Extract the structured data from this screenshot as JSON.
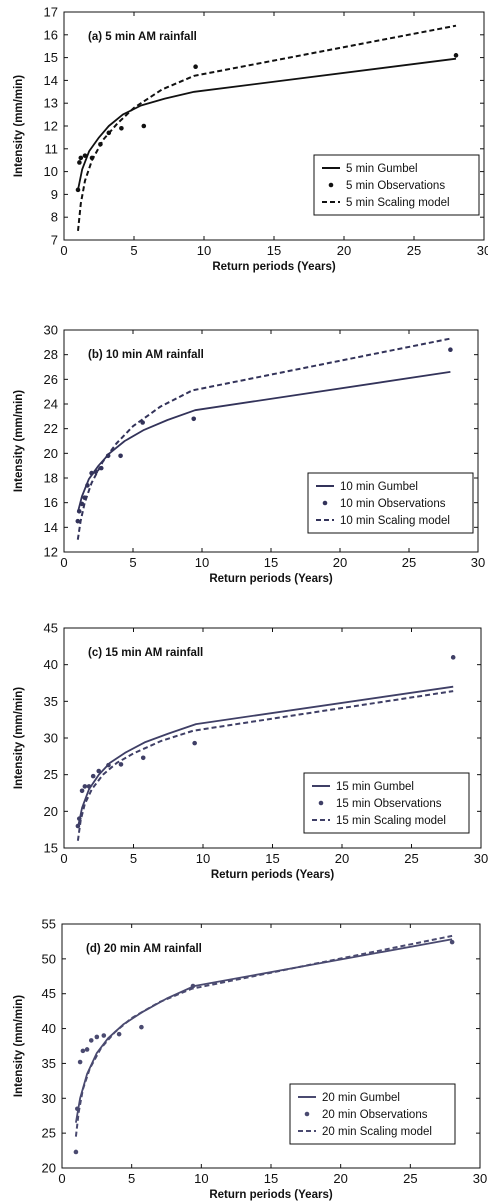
{
  "chart_data": [
    {
      "type": "line",
      "title": "(a) 5 min AM rainfall",
      "xlabel": "Return periods (Years)",
      "ylabel": "Intensity (mm/min)",
      "xlim": [
        0,
        30
      ],
      "ylim": [
        7,
        17
      ],
      "xticks": [
        0,
        5,
        10,
        15,
        20,
        25,
        30
      ],
      "yticks": [
        7,
        8,
        9,
        10,
        11,
        12,
        13,
        14,
        15,
        16,
        17
      ],
      "legend_position": "lower-right",
      "line_color": "#111111",
      "series": [
        {
          "name": "5 min Gumbel",
          "style": "solid",
          "x": [
            1.0,
            1.3,
            1.8,
            2.5,
            3.2,
            4.2,
            5.5,
            7.2,
            9.3,
            28
          ],
          "y": [
            9.2,
            10.1,
            10.9,
            11.5,
            12.0,
            12.5,
            12.9,
            13.2,
            13.5,
            14.95
          ]
        },
        {
          "name": "5 min Observations",
          "style": "points",
          "x": [
            1.0,
            1.1,
            1.2,
            1.5,
            2.0,
            2.6,
            3.2,
            4.1,
            5.7,
            9.4,
            28.0
          ],
          "y": [
            9.2,
            10.4,
            10.6,
            10.7,
            10.6,
            11.2,
            11.7,
            11.9,
            12.0,
            14.6,
            15.1
          ]
        },
        {
          "name": "5 min Scaling model",
          "style": "dashed",
          "x": [
            1.0,
            1.2,
            1.5,
            2.0,
            2.8,
            3.8,
            5.0,
            7.0,
            9.3,
            28
          ],
          "y": [
            7.4,
            8.6,
            9.6,
            10.5,
            11.4,
            12.1,
            12.8,
            13.6,
            14.2,
            16.4
          ]
        }
      ]
    },
    {
      "type": "line",
      "title": "(b) 10 min AM rainfall",
      "xlabel": "Return periods (Years)",
      "ylabel": "Intensity (mm/min)",
      "xlim": [
        0,
        30
      ],
      "ylim": [
        12,
        30
      ],
      "xticks": [
        0,
        5,
        10,
        15,
        20,
        25,
        30
      ],
      "yticks": [
        12,
        14,
        16,
        18,
        20,
        22,
        24,
        26,
        28,
        30
      ],
      "legend_position": "lower-right",
      "line_color": "#33335a",
      "series": [
        {
          "name": "10 min Gumbel",
          "style": "solid",
          "x": [
            1.0,
            1.3,
            1.8,
            2.5,
            3.3,
            4.4,
            5.8,
            7.5,
            9.5,
            28
          ],
          "y": [
            15.2,
            16.5,
            17.9,
            19.0,
            20.0,
            21.0,
            21.9,
            22.7,
            23.5,
            26.6
          ]
        },
        {
          "name": "10 min Observations",
          "style": "points",
          "x": [
            1.0,
            1.1,
            1.3,
            1.5,
            1.7,
            2.0,
            2.3,
            2.7,
            3.2,
            4.1,
            5.7,
            9.4,
            28.0
          ],
          "y": [
            14.5,
            15.3,
            15.9,
            16.4,
            17.4,
            18.4,
            18.5,
            18.8,
            19.8,
            19.8,
            22.5,
            22.8,
            28.4
          ]
        },
        {
          "name": "10 min Scaling model",
          "style": "dashed",
          "x": [
            1.0,
            1.2,
            1.5,
            2.0,
            2.8,
            3.8,
            5.0,
            7.0,
            9.3,
            28
          ],
          "y": [
            13.0,
            14.5,
            16.0,
            17.6,
            19.3,
            20.8,
            22.2,
            23.8,
            25.1,
            29.3
          ]
        }
      ]
    },
    {
      "type": "line",
      "title": "(c) 15 min AM rainfall",
      "xlabel": "Return periods (Years)",
      "ylabel": "Intensity (mm/min)",
      "xlim": [
        0,
        30
      ],
      "ylim": [
        15,
        45
      ],
      "xticks": [
        0,
        5,
        10,
        15,
        20,
        25,
        30
      ],
      "yticks": [
        15,
        20,
        25,
        30,
        35,
        40,
        45
      ],
      "legend_position": "lower-right",
      "line_color": "#3f3f66",
      "series": [
        {
          "name": "15 min Gumbel",
          "style": "solid",
          "x": [
            1.0,
            1.3,
            1.8,
            2.5,
            3.3,
            4.4,
            5.8,
            7.5,
            9.5,
            28
          ],
          "y": [
            17.8,
            20.5,
            23.0,
            25.0,
            26.6,
            28.0,
            29.4,
            30.6,
            31.9,
            37.0
          ]
        },
        {
          "name": "15 min Observations",
          "style": "points",
          "x": [
            1.0,
            1.1,
            1.3,
            1.5,
            1.8,
            2.1,
            2.5,
            3.2,
            4.1,
            5.7,
            9.4,
            28.0
          ],
          "y": [
            18.0,
            19.0,
            22.8,
            23.4,
            23.4,
            24.8,
            25.5,
            26.3,
            26.4,
            27.3,
            29.3,
            41.0
          ]
        },
        {
          "name": "15 min Scaling model",
          "style": "dashed",
          "x": [
            1.0,
            1.2,
            1.5,
            2.0,
            2.8,
            3.8,
            5.0,
            7.0,
            9.3,
            28
          ],
          "y": [
            16.0,
            18.8,
            21.0,
            23.0,
            25.0,
            26.6,
            27.9,
            29.6,
            31.0,
            36.4
          ]
        }
      ]
    },
    {
      "type": "line",
      "title": "(d) 20 min AM rainfall",
      "xlabel": "Return periods (Years)",
      "ylabel": "Intensity (mm/min)",
      "xlim": [
        0,
        30
      ],
      "ylim": [
        20,
        55
      ],
      "xticks": [
        0,
        5,
        10,
        15,
        20,
        25,
        30
      ],
      "yticks": [
        20,
        25,
        30,
        35,
        40,
        45,
        50,
        55
      ],
      "legend_position": "lower-right",
      "line_color": "#4a4a70",
      "series": [
        {
          "name": "20 min Gumbel",
          "style": "solid",
          "x": [
            1.0,
            1.3,
            1.8,
            2.5,
            3.3,
            4.4,
            5.8,
            7.5,
            9.5,
            28
          ],
          "y": [
            26.5,
            30.0,
            33.5,
            36.5,
            38.6,
            40.6,
            42.4,
            44.3,
            46.1,
            52.8
          ]
        },
        {
          "name": "20 min Observations",
          "style": "points",
          "x": [
            1.0,
            1.1,
            1.3,
            1.5,
            1.8,
            2.1,
            2.5,
            3.0,
            4.1,
            5.7,
            9.4,
            28.0
          ],
          "y": [
            22.3,
            28.5,
            35.2,
            36.8,
            37.0,
            38.3,
            38.8,
            39.0,
            39.2,
            40.2,
            46.1,
            52.4
          ]
        },
        {
          "name": "20 min Scaling model",
          "style": "dashed",
          "x": [
            1.0,
            1.2,
            1.5,
            2.0,
            2.8,
            3.8,
            5.0,
            7.0,
            9.3,
            28
          ],
          "y": [
            24.5,
            28.0,
            31.3,
            34.3,
            37.2,
            39.5,
            41.5,
            43.8,
            45.7,
            53.3
          ]
        }
      ]
    }
  ]
}
